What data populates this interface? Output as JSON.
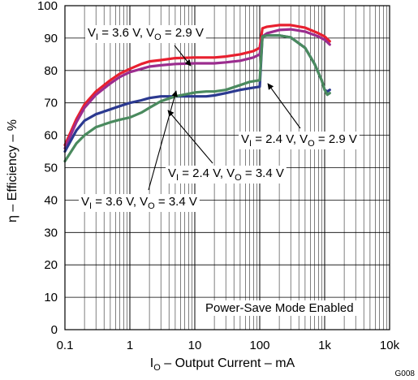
{
  "chart_data": {
    "type": "line",
    "xscale": "log",
    "xlim": [
      0.1,
      10000
    ],
    "ylim": [
      0,
      100
    ],
    "grid": true,
    "xlabel": "I_O – Output Current – mA",
    "xlabel_main": "I",
    "xlabel_sub": "O",
    "xlabel_rest": " – Output Current – mA",
    "ylabel": "η – Efficiency – %",
    "x_ticks": [
      "0.1",
      "1",
      "10",
      "100",
      "1k",
      "10k"
    ],
    "y_ticks": [
      "0",
      "10",
      "20",
      "30",
      "40",
      "50",
      "60",
      "70",
      "80",
      "90",
      "100"
    ],
    "figure_id": "G008",
    "annotations": [
      {
        "id": "a1",
        "p1": "V",
        "s1": "I",
        "p2": " = 3.6 V, V",
        "s2": "O",
        "p3": " = 2.9 V"
      },
      {
        "id": "a2",
        "p1": "V",
        "s1": "I",
        "p2": " = 2.4 V, V",
        "s2": "O",
        "p3": " = 2.9 V"
      },
      {
        "id": "a3",
        "p1": "V",
        "s1": "I",
        "p2": " = 2.4 V, V",
        "s2": "O",
        "p3": " = 3.4 V"
      },
      {
        "id": "a4",
        "p1": "V",
        "s1": "I",
        "p2": " = 3.6 V, V",
        "s2": "O",
        "p3": " = 3.4 V"
      },
      {
        "id": "a5",
        "text": "Power-Save Mode Enabled"
      }
    ],
    "series": [
      {
        "color": "#e8202f",
        "x": [
          0.1,
          0.15,
          0.2,
          0.3,
          0.5,
          0.7,
          1,
          1.5,
          2,
          3,
          5,
          10,
          20,
          30,
          50,
          80,
          100,
          110,
          130,
          200,
          300,
          500,
          800,
          1000,
          1200
        ],
        "y": [
          57,
          65,
          69.5,
          73.5,
          77,
          79,
          80.5,
          82,
          82.8,
          83.2,
          83.8,
          84,
          84,
          84.3,
          85,
          86,
          87,
          93,
          93.5,
          94,
          94,
          93.2,
          91.5,
          90.5,
          89
        ]
      },
      {
        "color": "#9b2d8f",
        "x": [
          0.1,
          0.15,
          0.2,
          0.3,
          0.5,
          0.7,
          1,
          1.5,
          2,
          3,
          5,
          10,
          20,
          30,
          50,
          80,
          100,
          110,
          130,
          200,
          300,
          500,
          800,
          1000,
          1200
        ],
        "y": [
          56,
          64,
          68.5,
          72.5,
          76,
          78,
          79.5,
          80.5,
          81.2,
          81.6,
          82,
          82.2,
          82.2,
          82.5,
          83,
          84,
          85,
          90.5,
          91.5,
          92.5,
          92.7,
          92,
          90.5,
          89.5,
          88
        ]
      },
      {
        "color": "#2b3990",
        "x": [
          0.1,
          0.15,
          0.2,
          0.3,
          0.5,
          0.7,
          1,
          1.5,
          2,
          3,
          5,
          10,
          15,
          20,
          30,
          50,
          70,
          100,
          110,
          130,
          200,
          300,
          500,
          700,
          900,
          1000,
          1100,
          1200
        ],
        "y": [
          55,
          61.5,
          64.5,
          66.5,
          68,
          69,
          70,
          70.8,
          71.5,
          72,
          72,
          72,
          72,
          72.3,
          73,
          74,
          74.5,
          75,
          90.5,
          90.8,
          90.8,
          90.2,
          87,
          82,
          77,
          74,
          73.5,
          74
        ]
      },
      {
        "color": "#4a8a5e",
        "x": [
          0.1,
          0.15,
          0.2,
          0.3,
          0.5,
          0.7,
          1,
          1.5,
          2,
          3,
          5,
          10,
          15,
          20,
          30,
          50,
          70,
          100,
          110,
          130,
          200,
          300,
          500,
          700,
          900,
          1000,
          1100,
          1200
        ],
        "y": [
          52,
          57.5,
          60,
          62.5,
          64,
          64.8,
          65.5,
          67,
          68.5,
          70.5,
          72,
          73.2,
          73.5,
          73.5,
          74,
          75.5,
          76.5,
          77,
          90.5,
          90.8,
          90.8,
          90.2,
          87,
          82,
          77,
          74,
          72.5,
          73
        ]
      }
    ]
  }
}
